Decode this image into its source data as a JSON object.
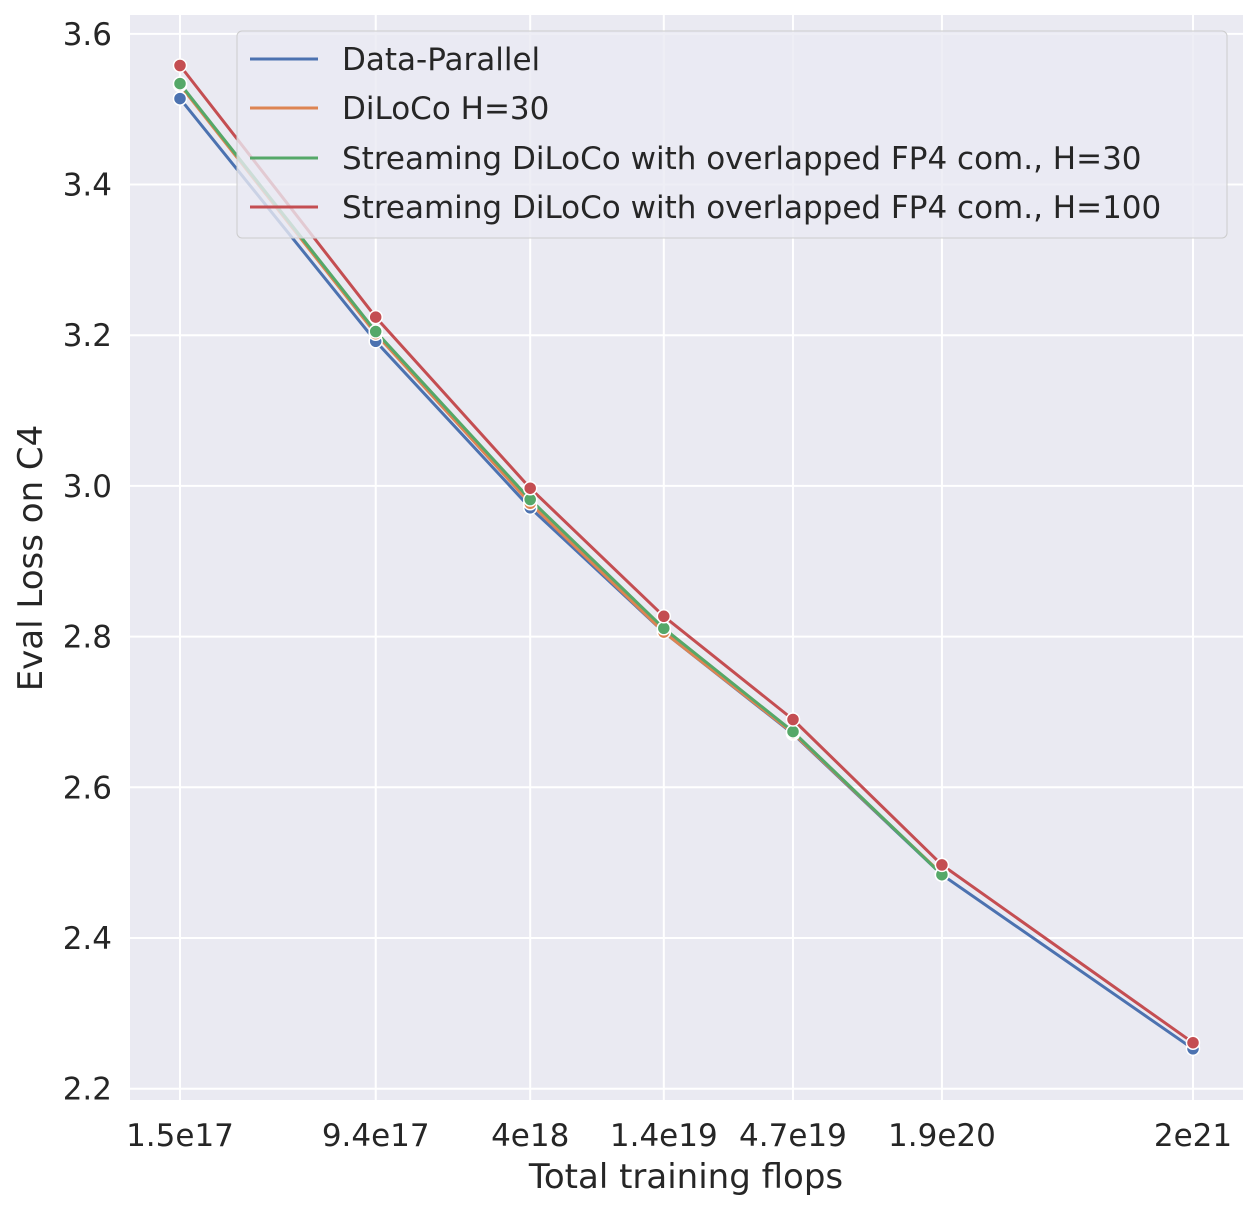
{
  "chart_data": {
    "type": "line",
    "title": "",
    "xlabel": "Total training flops",
    "ylabel": "Eval Loss on C4",
    "x_scale": "log",
    "x": [
      1.5e+17,
      9.4e+17,
      4e+18,
      1.4e+19,
      4.7e+19,
      1.9e+20,
      2e+21
    ],
    "x_tick_labels": [
      "1.5e17",
      "9.4e17",
      "4e18",
      "1.4e19",
      "4.7e19",
      "1.9e20",
      "2e21"
    ],
    "ylim": [
      2.185,
      3.625
    ],
    "y_ticks": [
      2.2,
      2.4,
      2.6,
      2.8,
      3.0,
      3.2,
      3.4,
      3.6
    ],
    "y_tick_labels": [
      "2.2",
      "2.4",
      "2.6",
      "2.8",
      "3.0",
      "3.2",
      "3.4",
      "3.6"
    ],
    "grid": true,
    "legend_position": "top-right",
    "series": [
      {
        "name": "Data-Parallel",
        "color": "#4c72b0",
        "values": [
          3.514,
          3.192,
          2.971,
          2.806,
          2.671,
          2.484,
          2.253
        ]
      },
      {
        "name": "DiLoCo H=30",
        "color": "#dd8452",
        "values": [
          3.532,
          3.202,
          2.977,
          2.806,
          2.672,
          2.485,
          null
        ]
      },
      {
        "name": "Streaming DiLoCo with overlapped FP4 com., H=30",
        "color": "#55a868",
        "values": [
          3.534,
          3.205,
          2.982,
          2.811,
          2.674,
          2.484,
          null
        ]
      },
      {
        "name": "Streaming DiLoCo with overlapped FP4 com., H=100",
        "color": "#c44e52",
        "values": [
          3.558,
          3.224,
          2.997,
          2.827,
          2.69,
          2.497,
          2.261
        ]
      }
    ]
  }
}
